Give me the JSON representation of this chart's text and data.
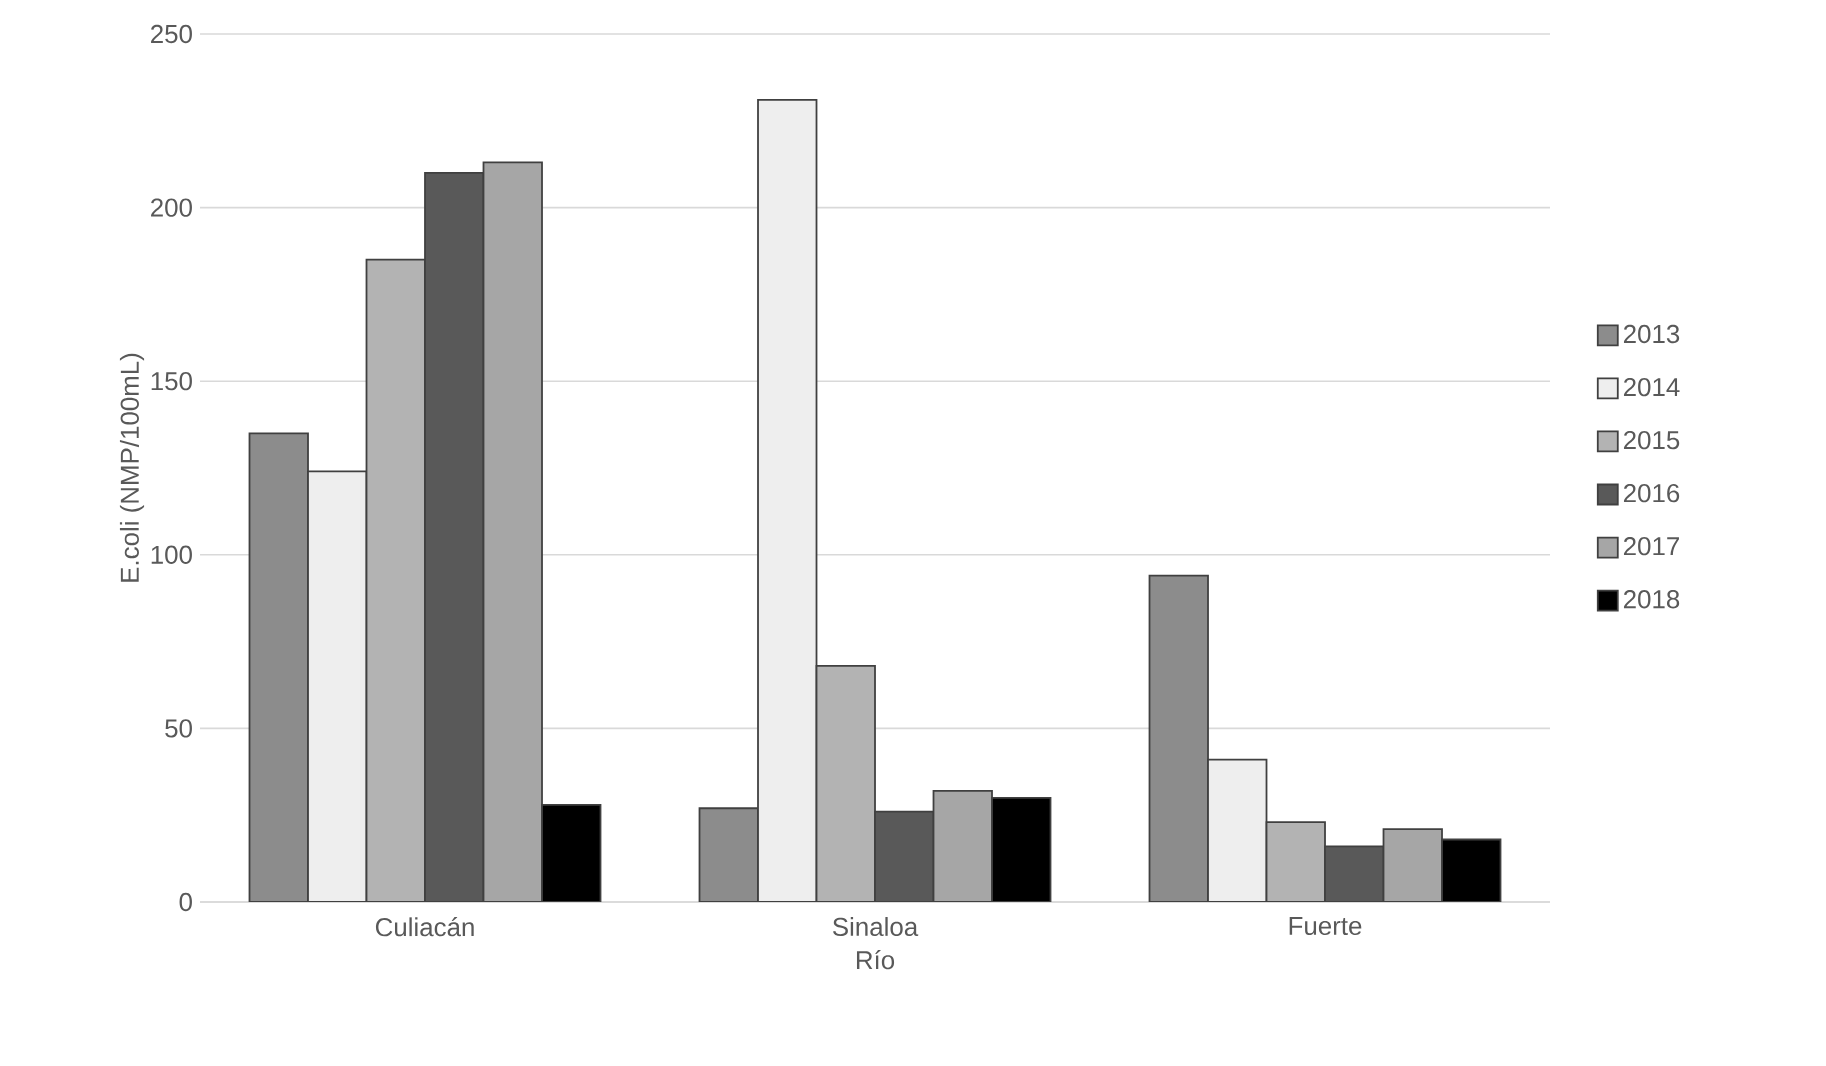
{
  "chart_data": {
    "type": "bar",
    "xlabel": "Río",
    "ylabel": "E.coli (NMP/100mL)",
    "categories": [
      "Culiacán",
      "Sinaloa",
      "Fuerte"
    ],
    "series": [
      {
        "name": "2013",
        "color": "#8c8c8c",
        "values": [
          135,
          27,
          94
        ]
      },
      {
        "name": "2014",
        "color": "#eeeeee",
        "values": [
          124,
          231,
          41
        ]
      },
      {
        "name": "2015",
        "color": "#b3b3b3",
        "values": [
          185,
          68,
          23
        ]
      },
      {
        "name": "2016",
        "color": "#595959",
        "values": [
          210,
          26,
          16
        ]
      },
      {
        "name": "2017",
        "color": "#a6a6a6",
        "values": [
          213,
          32,
          21
        ]
      },
      {
        "name": "2018",
        "color": "#000000",
        "values": [
          28,
          30,
          18
        ]
      }
    ],
    "ylim": [
      0,
      250
    ],
    "yticks": [
      0,
      50,
      100,
      150,
      200,
      250
    ],
    "grid": "y",
    "legend": "right"
  }
}
